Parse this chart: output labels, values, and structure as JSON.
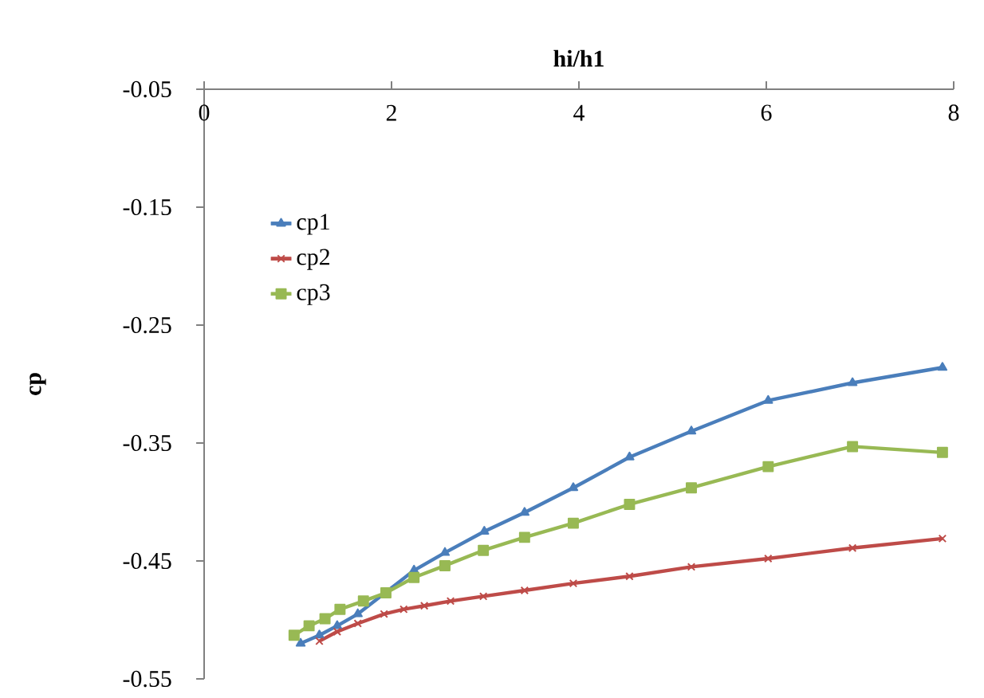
{
  "chart_data": {
    "type": "line",
    "xlabel": "hi/h1",
    "ylabel": "cp",
    "xlim": [
      0,
      8
    ],
    "xticks": [
      0,
      2,
      4,
      6,
      8
    ],
    "ylim": [
      -0.55,
      -0.05
    ],
    "yticks": [
      -0.55,
      -0.45,
      -0.35,
      -0.25,
      -0.15,
      -0.05
    ],
    "grid": false,
    "legend": "left",
    "line_style": "solid",
    "series": [
      {
        "name": "cp1",
        "color": "#4a7ebb",
        "marker": "triangle",
        "x": [
          1.03,
          1.23,
          1.42,
          1.64,
          1.92,
          2.24,
          2.57,
          2.99,
          3.42,
          3.94,
          4.54,
          5.2,
          6.02,
          6.92,
          7.88
        ],
        "values": [
          -0.52,
          -0.513,
          -0.505,
          -0.495,
          null,
          -0.458,
          -0.443,
          -0.425,
          -0.409,
          -0.388,
          -0.362,
          -0.34,
          -0.314,
          -0.299,
          -0.286
        ]
      },
      {
        "name": "cp2",
        "color": "#be4b48",
        "marker": "cross",
        "x": [
          1.23,
          1.42,
          1.64,
          1.92,
          2.13,
          2.35,
          2.63,
          2.98,
          3.42,
          3.94,
          4.54,
          5.2,
          6.02,
          6.92,
          7.88
        ],
        "values": [
          -0.518,
          -0.51,
          -0.503,
          -0.495,
          -0.491,
          -0.488,
          -0.484,
          -0.48,
          -0.475,
          -0.469,
          -0.463,
          -0.455,
          -0.448,
          -0.439,
          -0.431
        ]
      },
      {
        "name": "cp3",
        "color": "#98b954",
        "marker": "square",
        "x": [
          0.96,
          1.12,
          1.29,
          1.45,
          1.7,
          1.94,
          2.24,
          2.57,
          2.98,
          3.42,
          3.94,
          4.54,
          5.2,
          6.02,
          6.92,
          7.88
        ],
        "values": [
          -0.513,
          -0.505,
          -0.499,
          -0.491,
          -0.484,
          -0.477,
          -0.464,
          -0.454,
          -0.441,
          -0.43,
          -0.418,
          -0.402,
          -0.388,
          -0.37,
          -0.353,
          -0.358
        ]
      }
    ]
  }
}
